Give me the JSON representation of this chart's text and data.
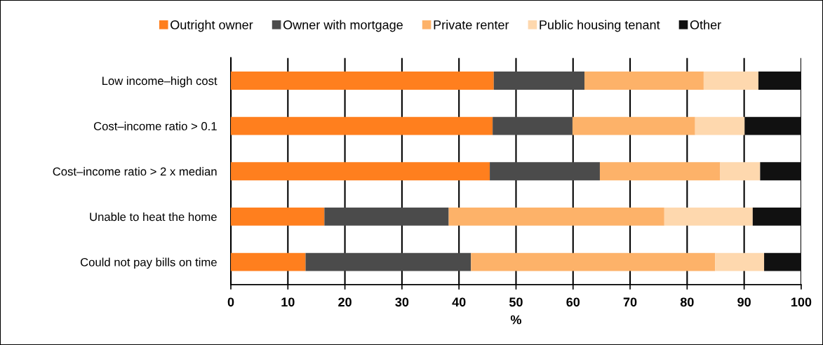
{
  "chart_data": {
    "type": "bar",
    "orientation": "horizontal",
    "stacked": true,
    "categories": [
      "Low income–high cost",
      "Cost–income ratio > 0.1",
      "Cost–income ratio > 2 x median",
      "Unable to heat the home",
      "Could not pay bills on time"
    ],
    "series": [
      {
        "name": "Outright owner",
        "color": "#ff7f1e",
        "values": [
          46.1,
          45.9,
          45.4,
          16.4,
          13.1
        ]
      },
      {
        "name": "Owner with mortgage",
        "color": "#4b4b4b",
        "values": [
          15.9,
          14.0,
          19.3,
          21.8,
          29.0
        ]
      },
      {
        "name": "Private renter",
        "color": "#fdb269",
        "values": [
          20.9,
          21.5,
          21.1,
          37.8,
          42.8
        ]
      },
      {
        "name": "Public housing tenant",
        "color": "#fed8ae",
        "values": [
          9.6,
          8.7,
          7.0,
          15.5,
          8.6
        ]
      },
      {
        "name": "Other",
        "color": "#111111",
        "values": [
          7.5,
          9.9,
          7.2,
          8.5,
          6.5
        ]
      }
    ],
    "xlim": [
      0,
      100
    ],
    "xticks": [
      0,
      10,
      20,
      30,
      40,
      50,
      60,
      70,
      80,
      90,
      100
    ],
    "xlabel": "%",
    "grid": "x",
    "legend": "top"
  }
}
